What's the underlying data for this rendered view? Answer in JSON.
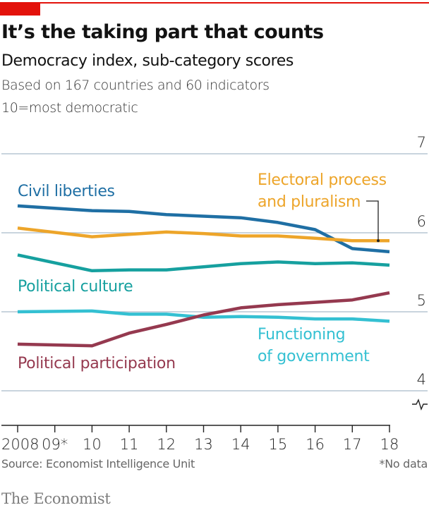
{
  "header": {
    "title": "It’s the taking part that counts",
    "subtitle": "Democracy index, sub-category scores",
    "note_1": "Based on 167 countries and 60 indicators",
    "note_2": "10=most democratic"
  },
  "footer": {
    "source": "Source: Economist Intelligence Unit",
    "footnote": "*No data",
    "brand": "The Economist"
  },
  "colors": {
    "brand_red": "#e3120b",
    "civil_liberties": "#1f6fa4",
    "electoral_process": "#eda52a",
    "political_culture": "#16a09f",
    "functioning_of_government": "#34c0d2",
    "political_participation": "#95394f",
    "gridline": "#b7c6d3",
    "axis": "#222222"
  },
  "chart_data": {
    "type": "line",
    "title": "It’s the taking part that counts",
    "subtitle": "Democracy index, sub-category scores",
    "xlabel": "",
    "ylabel": "",
    "x": [
      2008,
      2010,
      2011,
      2012,
      2013,
      2014,
      2015,
      2016,
      2017,
      2018
    ],
    "x_ticks": [
      2008,
      2009,
      2010,
      2011,
      2012,
      2013,
      2014,
      2015,
      2016,
      2017,
      2018
    ],
    "x_tick_labels": [
      "2008",
      "09*",
      "10",
      "11",
      "12",
      "13",
      "14",
      "15",
      "16",
      "17",
      "18"
    ],
    "y_ticks": [
      4,
      5,
      6,
      7
    ],
    "y_tick_labels": [
      "4",
      "5",
      "6",
      "7"
    ],
    "ylim": [
      4,
      7
    ],
    "xlim": [
      2008,
      2018
    ],
    "grid": true,
    "y_axis_side": "right",
    "y_axis_break": true,
    "series": [
      {
        "key": "civil_liberties",
        "name": "Civil liberties",
        "label_lines": [
          "Civil liberties"
        ],
        "values": [
          6.34,
          6.28,
          6.27,
          6.23,
          6.21,
          6.19,
          6.13,
          6.04,
          5.8,
          5.76
        ]
      },
      {
        "key": "electoral_process",
        "name": "Electoral process and pluralism",
        "label_lines": [
          "Electoral process",
          "and pluralism"
        ],
        "values": [
          6.06,
          5.95,
          5.98,
          6.01,
          5.99,
          5.96,
          5.96,
          5.93,
          5.9,
          5.9
        ]
      },
      {
        "key": "political_culture",
        "name": "Political culture",
        "label_lines": [
          "Political culture"
        ],
        "values": [
          5.72,
          5.52,
          5.53,
          5.53,
          5.57,
          5.61,
          5.63,
          5.61,
          5.62,
          5.59
        ]
      },
      {
        "key": "functioning_of_government",
        "name": "Functioning of government",
        "label_lines": [
          "Functioning",
          "of government"
        ],
        "values": [
          5.0,
          5.01,
          4.97,
          4.97,
          4.93,
          4.94,
          4.93,
          4.91,
          4.91,
          4.88
        ]
      },
      {
        "key": "political_participation",
        "name": "Political participation",
        "label_lines": [
          "Political participation"
        ],
        "values": [
          4.59,
          4.57,
          4.73,
          4.84,
          4.96,
          5.05,
          5.09,
          5.12,
          5.15,
          5.24
        ]
      }
    ],
    "annotations": [
      "*No data"
    ]
  }
}
